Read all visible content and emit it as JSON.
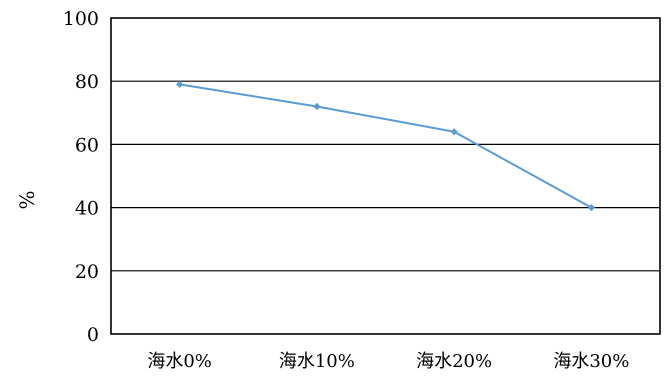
{
  "chart_data": {
    "type": "line",
    "title": "",
    "xlabel": "",
    "ylabel": "%",
    "categories": [
      "海水0%",
      "海水10%",
      "海水20%",
      "海水30%"
    ],
    "series": [
      {
        "values": [
          79,
          72,
          64,
          40
        ]
      }
    ],
    "ylim": [
      0,
      100
    ],
    "yticks": [
      0,
      20,
      40,
      60,
      80,
      100
    ],
    "grid": true,
    "legend": "none",
    "colors": {
      "series": "#5b9bd5",
      "grid": "#000000",
      "axis": "#000000"
    }
  }
}
